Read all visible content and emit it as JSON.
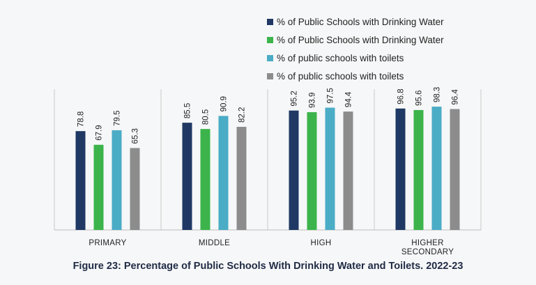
{
  "chart_data": {
    "type": "bar",
    "title": "Figure 23: Percentage of Public Schools With Drinking Water and Toilets. 2022-23",
    "categories": [
      "PRIMARY",
      "MIDDLE",
      "HIGH",
      "HIGHER SECONDARY"
    ],
    "series": [
      {
        "name": "% of Public Schools with Drinking Water",
        "color": "#1f3864",
        "values": [
          78.8,
          85.5,
          95.2,
          96.8
        ]
      },
      {
        "name": "% of Public Schools with Drinking Water",
        "color": "#3cb44b",
        "values": [
          67.9,
          80.5,
          93.9,
          95.6
        ]
      },
      {
        "name": "% of public schools with toilets",
        "color": "#4bacc6",
        "values": [
          79.5,
          90.9,
          97.5,
          98.3
        ]
      },
      {
        "name": "% of public schools with toilets",
        "color": "#8c8c8c",
        "values": [
          65.3,
          82.2,
          94.4,
          96.4
        ]
      }
    ],
    "xlabel": "",
    "ylabel": "",
    "ylim": [
      0,
      100
    ],
    "grid": false,
    "legend": "top-right"
  }
}
